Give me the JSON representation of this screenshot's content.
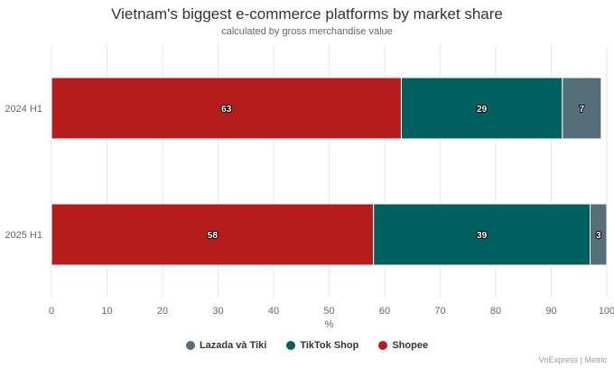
{
  "chart_data": {
    "type": "bar",
    "orientation": "horizontal",
    "stacked": true,
    "title": "Vietnam's biggest e-commerce platforms by market share",
    "subtitle": "calculated by gross merchandise value",
    "xlabel": "%",
    "xlim": [
      0,
      100
    ],
    "xticks": [
      0,
      10,
      20,
      30,
      40,
      50,
      60,
      70,
      80,
      90,
      100
    ],
    "grid": true,
    "legend_position": "bottom",
    "categories": [
      "2024 H1",
      "2025 H1"
    ],
    "series": [
      {
        "name": "Shopee",
        "color": "#b71c1c",
        "values": [
          63,
          58
        ]
      },
      {
        "name": "TikTok Shop",
        "color": "#005f5f",
        "values": [
          29,
          39
        ]
      },
      {
        "name": "Lazada và Tiki",
        "color": "#546e7a",
        "values": [
          7,
          3
        ]
      }
    ],
    "legend_order": [
      "Lazada và Tiki",
      "TikTok Shop",
      "Shopee"
    ],
    "credits": "VnExpress | Metric"
  }
}
